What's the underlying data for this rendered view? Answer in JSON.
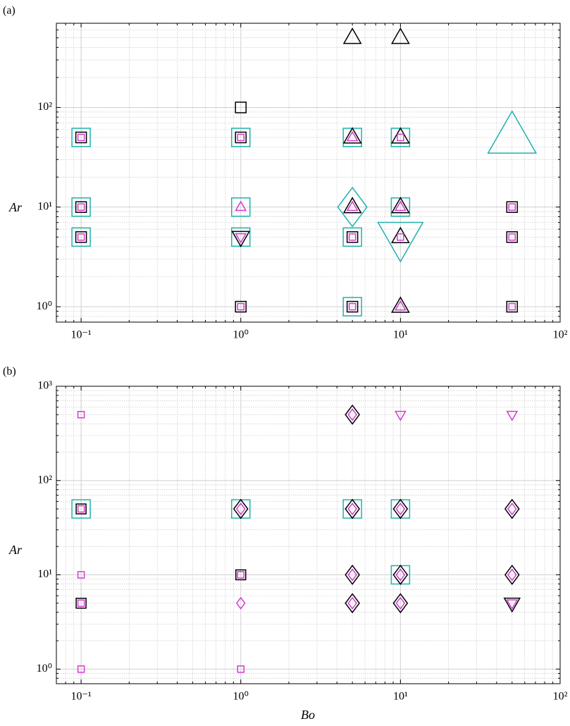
{
  "chart_data": [
    {
      "type": "scatter",
      "title": "(a)",
      "ylabel": "Ar",
      "xlog": true,
      "ylog": true,
      "grid": true,
      "xlim": [
        0.07,
        100
      ],
      "ylim": [
        0.7,
        700
      ],
      "xticks": [
        {
          "value": 0.1,
          "label": "10⁻¹"
        },
        {
          "value": 1,
          "label": "10⁰"
        },
        {
          "value": 10,
          "label": "10¹"
        },
        {
          "value": 100,
          "label": "10²"
        }
      ],
      "yticks": [
        {
          "value": 1,
          "label": "10⁰"
        },
        {
          "value": 10,
          "label": "10¹"
        },
        {
          "value": 100,
          "label": "10²"
        }
      ],
      "xminorticks": [
        0.08,
        0.09,
        0.2,
        0.3,
        0.4,
        0.5,
        0.6,
        0.7,
        0.8,
        0.9,
        2,
        3,
        4,
        5,
        6,
        7,
        8,
        9,
        20,
        30,
        40,
        50,
        60,
        70,
        80,
        90
      ],
      "yminorticks": [
        0.8,
        0.9,
        2,
        3,
        4,
        5,
        6,
        7,
        8,
        9,
        20,
        30,
        40,
        50,
        60,
        70,
        80,
        90,
        200,
        300,
        400,
        500,
        600
      ],
      "series": [
        {
          "color": "#20b2b0",
          "marker": "square",
          "size": 26,
          "x": [
            0.1,
            0.1,
            0.1,
            1,
            1,
            1,
            5,
            5,
            5,
            10,
            10
          ],
          "values": [
            50,
            10,
            5,
            50,
            10,
            5,
            50,
            5,
            1,
            50,
            10
          ]
        },
        {
          "color": "#20b2b0",
          "marker": "diamond",
          "size": 46,
          "x": [
            5
          ],
          "values": [
            10
          ]
        },
        {
          "color": "#20b2b0",
          "marker": "triangle-down",
          "size": 58,
          "x": [
            10
          ],
          "values": [
            5
          ]
        },
        {
          "color": "#20b2b0",
          "marker": "triangle",
          "size": 62,
          "x": [
            50
          ],
          "values": [
            50
          ]
        },
        {
          "color": "#000000",
          "marker": "square",
          "size": 15,
          "x": [
            0.1,
            0.1,
            0.1,
            1,
            1,
            1,
            5,
            5,
            50,
            50,
            50
          ],
          "values": [
            50,
            10,
            5,
            100,
            50,
            1,
            5,
            1,
            10,
            5,
            1
          ]
        },
        {
          "color": "#000000",
          "marker": "triangle",
          "size": 22,
          "x": [
            5,
            10,
            5,
            10,
            5,
            10,
            10,
            10
          ],
          "values": [
            500,
            500,
            50,
            50,
            10,
            10,
            5,
            1
          ]
        },
        {
          "color": "#000000",
          "marker": "triangle-down",
          "size": 22,
          "x": [
            1
          ],
          "values": [
            5
          ]
        },
        {
          "color": "#d63bd0",
          "marker": "square",
          "size": 9,
          "x": [
            0.1,
            0.1,
            0.1,
            1,
            1,
            5,
            5,
            10,
            10,
            50,
            50,
            50
          ],
          "values": [
            50,
            10,
            5,
            50,
            1,
            5,
            1,
            50,
            5,
            10,
            5,
            1
          ]
        },
        {
          "color": "#d63bd0",
          "marker": "triangle",
          "size": 13,
          "x": [
            1,
            5,
            5,
            10,
            10
          ],
          "values": [
            10,
            50,
            10,
            10,
            1
          ]
        },
        {
          "color": "#d63bd0",
          "marker": "triangle-down",
          "size": 13,
          "x": [
            1
          ],
          "values": [
            5
          ]
        }
      ]
    },
    {
      "type": "scatter",
      "title": "(b)",
      "xlabel": "Bo",
      "ylabel": "Ar",
      "xlog": true,
      "ylog": true,
      "grid": true,
      "xlim": [
        0.07,
        100
      ],
      "ylim": [
        0.7,
        1000
      ],
      "xticks": [
        {
          "value": 0.1,
          "label": "10⁻¹"
        },
        {
          "value": 1,
          "label": "10⁰"
        },
        {
          "value": 10,
          "label": "10¹"
        },
        {
          "value": 100,
          "label": "10²"
        }
      ],
      "yticks": [
        {
          "value": 1,
          "label": "10⁰"
        },
        {
          "value": 10,
          "label": "10¹"
        },
        {
          "value": 100,
          "label": "10²"
        },
        {
          "value": 1000,
          "label": "10³"
        }
      ],
      "xminorticks": [
        0.08,
        0.09,
        0.2,
        0.3,
        0.4,
        0.5,
        0.6,
        0.7,
        0.8,
        0.9,
        2,
        3,
        4,
        5,
        6,
        7,
        8,
        9,
        20,
        30,
        40,
        50,
        60,
        70,
        80,
        90
      ],
      "yminorticks": [
        0.8,
        0.9,
        2,
        3,
        4,
        5,
        6,
        7,
        8,
        9,
        20,
        30,
        40,
        50,
        60,
        70,
        80,
        90,
        200,
        300,
        400,
        500,
        600,
        700,
        800,
        900
      ],
      "series": [
        {
          "color": "#20b2b0",
          "marker": "square",
          "size": 26,
          "x": [
            0.1,
            1,
            5,
            10,
            10
          ],
          "values": [
            50,
            50,
            50,
            50,
            10
          ]
        },
        {
          "color": "#000000",
          "marker": "square",
          "size": 14,
          "x": [
            0.1,
            0.1,
            1
          ],
          "values": [
            50,
            5,
            10
          ]
        },
        {
          "color": "#000000",
          "marker": "diamond",
          "size": 22,
          "x": [
            1,
            5,
            5,
            5,
            5,
            10,
            10,
            10,
            50,
            50
          ],
          "values": [
            50,
            500,
            50,
            10,
            5,
            50,
            10,
            5,
            50,
            10
          ]
        },
        {
          "color": "#000000",
          "marker": "triangle-down",
          "size": 20,
          "x": [
            50
          ],
          "values": [
            5
          ]
        },
        {
          "color": "#d63bd0",
          "marker": "square",
          "size": 9,
          "x": [
            0.1,
            0.1,
            0.1,
            0.1,
            0.1,
            1,
            1
          ],
          "values": [
            500,
            50,
            10,
            5,
            1,
            10,
            1
          ]
        },
        {
          "color": "#d63bd0",
          "marker": "diamond",
          "size": 13,
          "x": [
            1,
            1,
            5,
            5,
            5,
            5,
            10,
            10,
            10,
            50,
            50
          ],
          "values": [
            50,
            5,
            500,
            50,
            10,
            5,
            50,
            10,
            5,
            50,
            10
          ]
        },
        {
          "color": "#d63bd0",
          "marker": "triangle-down",
          "size": 13,
          "x": [
            10,
            50,
            50
          ],
          "values": [
            500,
            500,
            5
          ]
        }
      ]
    }
  ]
}
